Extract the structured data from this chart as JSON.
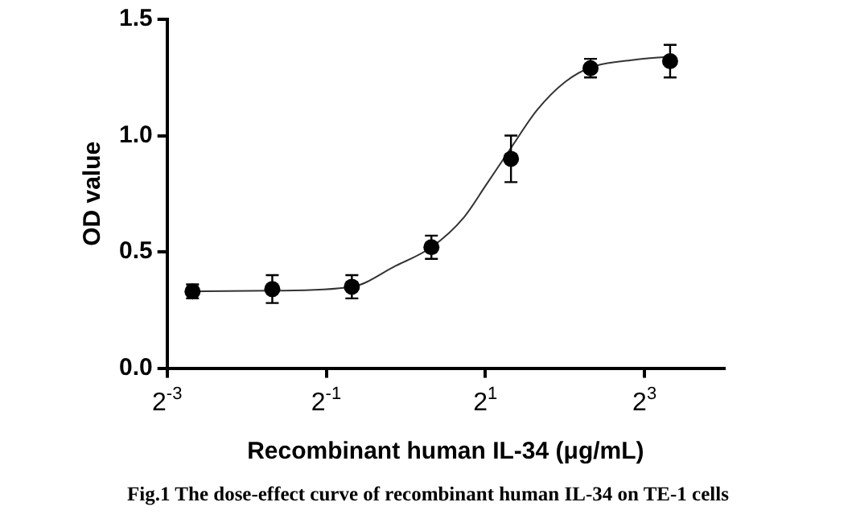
{
  "chart_data": {
    "type": "scatter",
    "xlabel": "Recombinant human IL-34 (μg/mL)",
    "ylabel": "OD value",
    "annotations": [
      "Fig.1 The dose-effect curve of recombinant human IL-34 on TE-1 cells"
    ],
    "log": "x",
    "grid": false,
    "legend": false,
    "xlim": [
      0.125,
      16
    ],
    "xticks": [
      {
        "value": 0.125,
        "label": "2$^{-3}$"
      },
      {
        "value": 0.5,
        "label": "2$^{-1}$"
      },
      {
        "value": 2,
        "label": "2$^{1}$"
      },
      {
        "value": 8,
        "label": "2$^{3}$"
      }
    ],
    "ylim": [
      0,
      1.5
    ],
    "yticks": [
      {
        "value": 0,
        "label": "0.0"
      },
      {
        "value": 0.5,
        "label": "0.5"
      },
      {
        "value": 1,
        "label": "1.0"
      },
      {
        "value": 1.5,
        "label": "1.5"
      }
    ],
    "series": [
      {
        "marker": "circle",
        "color": "#000000",
        "x": [
          0.156,
          0.3125,
          0.625,
          1.25,
          2.5,
          5,
          10
        ],
        "values": [
          0.33,
          0.34,
          0.35,
          0.52,
          0.9,
          1.29,
          1.32
        ],
        "errors": [
          0.03,
          0.06,
          0.05,
          0.05,
          0.1,
          0.04,
          0.07
        ]
      },
      {
        "type": "line",
        "marker": "none",
        "color": "#333333",
        "x": [
          0.155,
          0.312,
          0.627,
          0.916,
          1.25,
          1.655,
          2.01,
          2.51,
          3.14,
          4.0,
          5.03,
          7.26,
          10
        ],
        "values": [
          0.33,
          0.333,
          0.35,
          0.44,
          0.52,
          0.647,
          0.787,
          0.95,
          1.11,
          1.23,
          1.294,
          1.325,
          1.34
        ]
      }
    ]
  }
}
